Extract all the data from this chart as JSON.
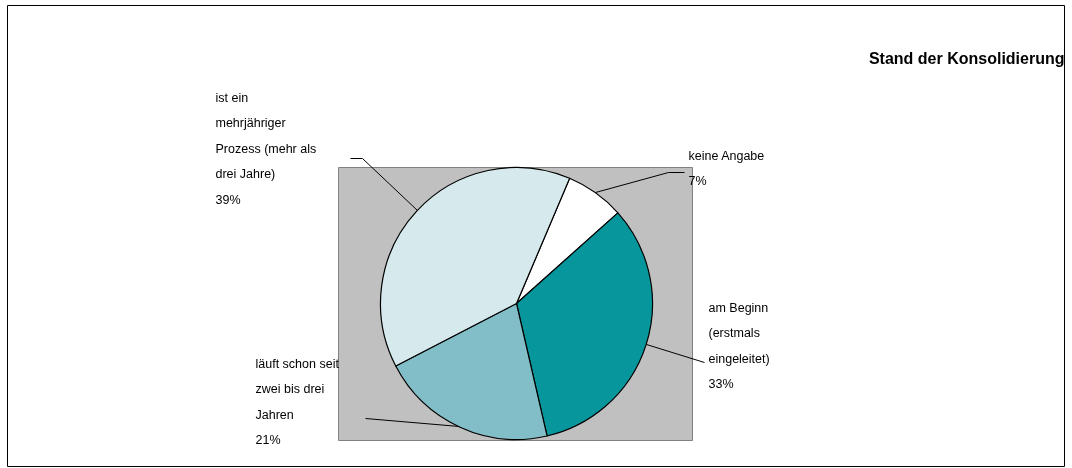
{
  "chart_data": {
    "type": "pie",
    "title": "Stand der Konsolidierung",
    "categories": [
      "keine Angabe",
      "am Beginn (erstmals eingeleitet)",
      "läuft schon seit zwei bis drei Jahren",
      "ist ein mehrjähriger Prozess (mehr als drei Jahre)"
    ],
    "values": [
      7,
      33,
      21,
      39
    ],
    "colors": [
      "#ffffff",
      "#07969b",
      "#82bec8",
      "#d6eaed"
    ],
    "value_labels": [
      "7%",
      "33%",
      "21%",
      "39%"
    ]
  }
}
